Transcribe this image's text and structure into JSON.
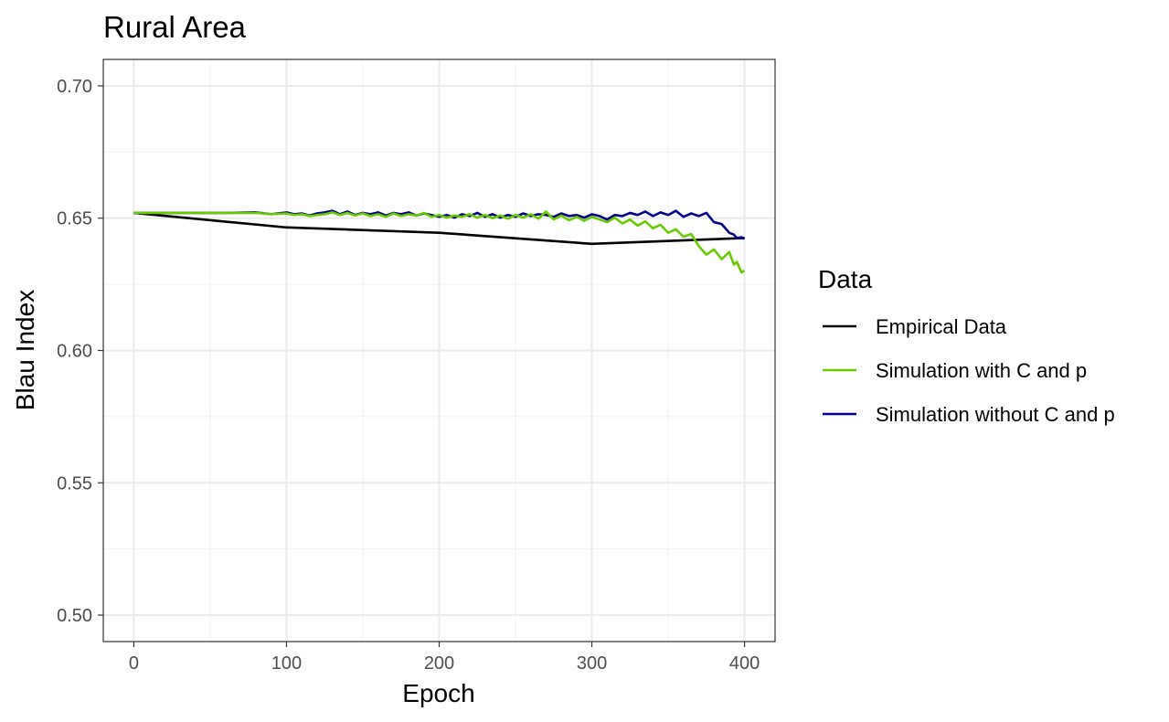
{
  "chart_data": {
    "type": "line",
    "title": "Rural Area",
    "xlabel": "Epoch",
    "ylabel": "Blau Index",
    "xlim": [
      -20,
      420
    ],
    "ylim": [
      0.49,
      0.71
    ],
    "x_ticks": [
      0,
      100,
      200,
      300,
      400
    ],
    "x_tick_labels": [
      "0",
      "100",
      "200",
      "300",
      "400"
    ],
    "y_ticks": [
      0.5,
      0.55,
      0.6,
      0.65,
      0.7
    ],
    "y_tick_labels": [
      "0.50",
      "0.55",
      "0.60",
      "0.65",
      "0.70"
    ],
    "grid": true,
    "legend": {
      "title": "Data",
      "position": "right"
    },
    "series": [
      {
        "name": "Empirical Data",
        "color": "#000000",
        "x": [
          0,
          100,
          200,
          300,
          400
        ],
        "y": [
          0.652,
          0.6465,
          0.6445,
          0.6403,
          0.6425
        ]
      },
      {
        "name": "Simulation with C and p",
        "color": "#66CC00",
        "x": [
          0,
          20,
          40,
          60,
          80,
          90,
          100,
          105,
          110,
          115,
          120,
          125,
          130,
          135,
          140,
          145,
          150,
          155,
          160,
          165,
          170,
          175,
          180,
          185,
          190,
          195,
          200,
          205,
          210,
          215,
          220,
          225,
          230,
          235,
          240,
          245,
          250,
          255,
          260,
          265,
          270,
          275,
          280,
          285,
          290,
          295,
          300,
          305,
          310,
          315,
          320,
          325,
          330,
          335,
          340,
          345,
          350,
          355,
          360,
          365,
          370,
          375,
          380,
          385,
          390,
          393,
          395,
          398,
          400
        ],
        "y": [
          0.652,
          0.652,
          0.652,
          0.652,
          0.652,
          0.6515,
          0.6518,
          0.6512,
          0.6515,
          0.6508,
          0.6512,
          0.6515,
          0.6522,
          0.6512,
          0.652,
          0.651,
          0.6518,
          0.6508,
          0.6515,
          0.6505,
          0.6518,
          0.6508,
          0.6515,
          0.651,
          0.652,
          0.6505,
          0.6512,
          0.6502,
          0.651,
          0.6505,
          0.6515,
          0.6502,
          0.6512,
          0.65,
          0.651,
          0.6498,
          0.6512,
          0.6502,
          0.6515,
          0.6498,
          0.6525,
          0.6495,
          0.651,
          0.6492,
          0.6505,
          0.649,
          0.6505,
          0.6495,
          0.6485,
          0.6502,
          0.648,
          0.6495,
          0.6472,
          0.6488,
          0.6462,
          0.6475,
          0.6445,
          0.6458,
          0.643,
          0.644,
          0.6395,
          0.6362,
          0.6382,
          0.6345,
          0.6372,
          0.6325,
          0.6335,
          0.6295,
          0.6302
        ]
      },
      {
        "name": "Simulation without C and p",
        "color": "#00008B",
        "x": [
          0,
          20,
          40,
          60,
          80,
          90,
          100,
          105,
          110,
          115,
          120,
          125,
          130,
          135,
          140,
          145,
          150,
          155,
          160,
          165,
          170,
          175,
          180,
          185,
          190,
          195,
          200,
          205,
          210,
          215,
          220,
          225,
          230,
          235,
          240,
          245,
          250,
          255,
          260,
          265,
          270,
          275,
          280,
          285,
          290,
          295,
          300,
          305,
          310,
          315,
          320,
          325,
          330,
          335,
          340,
          345,
          350,
          355,
          360,
          365,
          370,
          375,
          380,
          385,
          390,
          393,
          395,
          398,
          400
        ],
        "y": [
          0.652,
          0.652,
          0.652,
          0.652,
          0.6522,
          0.6515,
          0.6522,
          0.6515,
          0.6518,
          0.651,
          0.6518,
          0.6522,
          0.6528,
          0.6515,
          0.6525,
          0.6512,
          0.652,
          0.6515,
          0.6522,
          0.651,
          0.652,
          0.6515,
          0.6522,
          0.651,
          0.6518,
          0.6512,
          0.6505,
          0.6512,
          0.6502,
          0.6515,
          0.6508,
          0.652,
          0.6505,
          0.6515,
          0.6502,
          0.6512,
          0.6505,
          0.6518,
          0.6508,
          0.6515,
          0.6512,
          0.6505,
          0.6518,
          0.6508,
          0.6512,
          0.6502,
          0.6515,
          0.6508,
          0.6495,
          0.6512,
          0.6508,
          0.652,
          0.6512,
          0.6525,
          0.6508,
          0.6522,
          0.6512,
          0.6528,
          0.6505,
          0.6518,
          0.6508,
          0.652,
          0.6485,
          0.6478,
          0.6445,
          0.6438,
          0.6425,
          0.6428,
          0.6422
        ]
      }
    ]
  }
}
